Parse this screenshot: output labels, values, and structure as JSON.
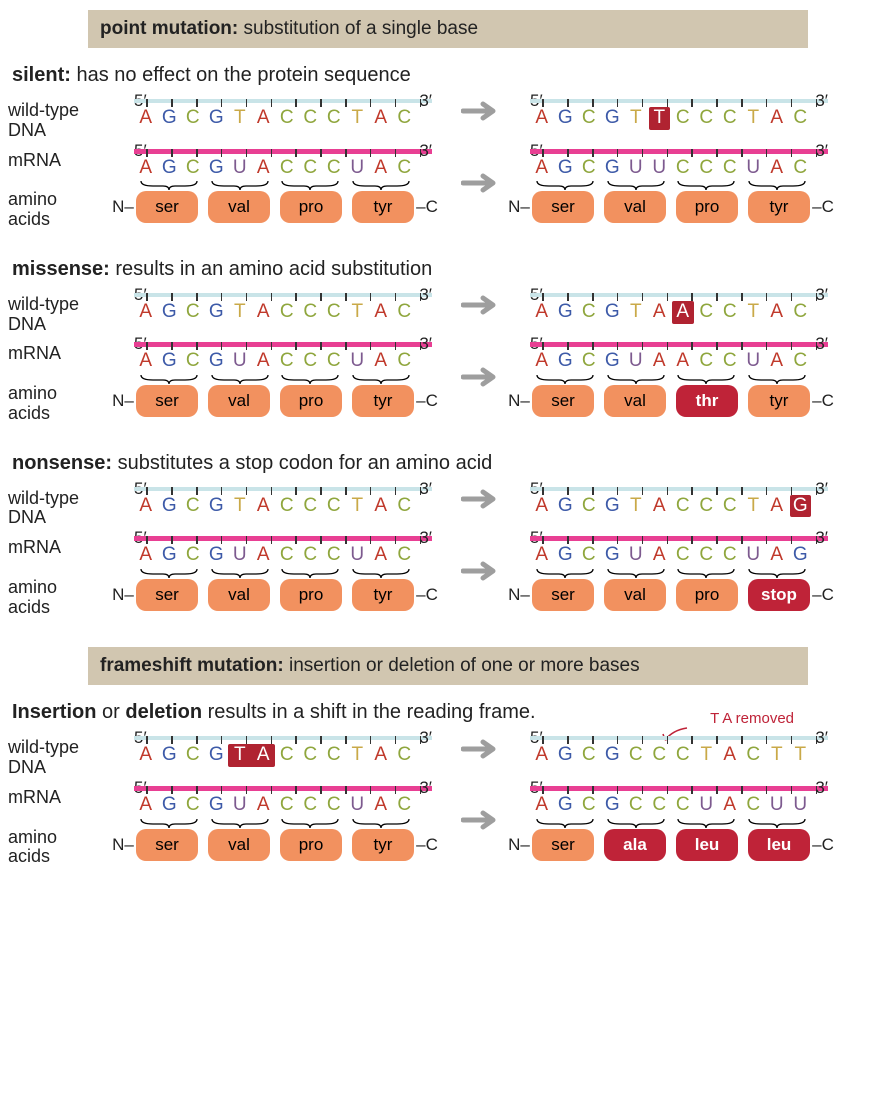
{
  "colors": {
    "dna_bar": "#c9e4e8",
    "rna_bar": "#e83f93",
    "aa_normal_bg": "#f2915f",
    "aa_changed_bg": "#bf2338",
    "highlight_bg": "#b02331",
    "header_bg": "#d1c6b0",
    "arrow": "#9e9e9e",
    "base_A": "#c0392b",
    "base_G": "#3d5aa8",
    "base_C": "#8fa63d",
    "base_T": "#c9a948",
    "base_U": "#7d5a8f"
  },
  "labels": {
    "wild_type_dna": "wild-type\nDNA",
    "mrna": "mRNA",
    "amino_acids": "amino\nacids",
    "end5": "5′",
    "end3": "3′",
    "termN": "N–",
    "termC": "–C"
  },
  "header1": {
    "bold": "point mutation:",
    "rest": " substitution of a single base"
  },
  "header2": {
    "bold": "frameshift mutation:",
    "rest": " insertion or deletion of one or more bases"
  },
  "sections": [
    {
      "key": "silent",
      "title_bold": "silent:",
      "title_rest": " has no effect on the protein sequence",
      "left": {
        "dna": [
          "A",
          "G",
          "C",
          "G",
          "T",
          "A",
          "C",
          "C",
          "C",
          "T",
          "A",
          "C"
        ],
        "dna_hl": [],
        "rna": [
          "A",
          "G",
          "C",
          "G",
          "U",
          "A",
          "C",
          "C",
          "C",
          "U",
          "A",
          "C"
        ],
        "aas": [
          {
            "t": "ser",
            "c": "normal"
          },
          {
            "t": "val",
            "c": "normal"
          },
          {
            "t": "pro",
            "c": "normal"
          },
          {
            "t": "tyr",
            "c": "normal"
          }
        ]
      },
      "right": {
        "dna": [
          "A",
          "G",
          "C",
          "G",
          "T",
          "T",
          "C",
          "C",
          "C",
          "T",
          "A",
          "C"
        ],
        "dna_hl": [
          5
        ],
        "rna": [
          "A",
          "G",
          "C",
          "G",
          "U",
          "U",
          "C",
          "C",
          "C",
          "U",
          "A",
          "C"
        ],
        "aas": [
          {
            "t": "ser",
            "c": "normal"
          },
          {
            "t": "val",
            "c": "normal"
          },
          {
            "t": "pro",
            "c": "normal"
          },
          {
            "t": "tyr",
            "c": "normal"
          }
        ]
      }
    },
    {
      "key": "missense",
      "title_bold": "missense:",
      "title_rest": " results in an amino acid substitution",
      "left": {
        "dna": [
          "A",
          "G",
          "C",
          "G",
          "T",
          "A",
          "C",
          "C",
          "C",
          "T",
          "A",
          "C"
        ],
        "dna_hl": [],
        "rna": [
          "A",
          "G",
          "C",
          "G",
          "U",
          "A",
          "C",
          "C",
          "C",
          "U",
          "A",
          "C"
        ],
        "aas": [
          {
            "t": "ser",
            "c": "normal"
          },
          {
            "t": "val",
            "c": "normal"
          },
          {
            "t": "pro",
            "c": "normal"
          },
          {
            "t": "tyr",
            "c": "normal"
          }
        ]
      },
      "right": {
        "dna": [
          "A",
          "G",
          "C",
          "G",
          "T",
          "A",
          "A",
          "C",
          "C",
          "T",
          "A",
          "C"
        ],
        "dna_hl": [
          6
        ],
        "rna": [
          "A",
          "G",
          "C",
          "G",
          "U",
          "A",
          "A",
          "C",
          "C",
          "U",
          "A",
          "C"
        ],
        "aas": [
          {
            "t": "ser",
            "c": "normal"
          },
          {
            "t": "val",
            "c": "normal"
          },
          {
            "t": "thr",
            "c": "changed"
          },
          {
            "t": "tyr",
            "c": "normal"
          }
        ]
      }
    },
    {
      "key": "nonsense",
      "title_bold": "nonsense:",
      "title_rest": " substitutes a stop codon for an amino acid",
      "left": {
        "dna": [
          "A",
          "G",
          "C",
          "G",
          "T",
          "A",
          "C",
          "C",
          "C",
          "T",
          "A",
          "C"
        ],
        "dna_hl": [],
        "rna": [
          "A",
          "G",
          "C",
          "G",
          "U",
          "A",
          "C",
          "C",
          "C",
          "U",
          "A",
          "C"
        ],
        "aas": [
          {
            "t": "ser",
            "c": "normal"
          },
          {
            "t": "val",
            "c": "normal"
          },
          {
            "t": "pro",
            "c": "normal"
          },
          {
            "t": "tyr",
            "c": "normal"
          }
        ]
      },
      "right": {
        "dna": [
          "A",
          "G",
          "C",
          "G",
          "T",
          "A",
          "C",
          "C",
          "C",
          "T",
          "A",
          "G"
        ],
        "dna_hl": [
          11
        ],
        "rna": [
          "A",
          "G",
          "C",
          "G",
          "U",
          "A",
          "C",
          "C",
          "C",
          "U",
          "A",
          "G"
        ],
        "aas": [
          {
            "t": "ser",
            "c": "normal"
          },
          {
            "t": "val",
            "c": "normal"
          },
          {
            "t": "pro",
            "c": "normal"
          },
          {
            "t": "stop",
            "c": "changed"
          }
        ]
      }
    }
  ],
  "frameshift": {
    "title_html": "Insertion|b| or |/b|deletion|b| results in a shift in the reading frame.",
    "title_parts": [
      "Insertion",
      " or ",
      "deletion",
      " results in a shift in the reading frame."
    ],
    "note": "T A removed",
    "left": {
      "dna": [
        "A",
        "G",
        "C",
        "G",
        "T",
        "A",
        "C",
        "C",
        "C",
        "T",
        "A",
        "C"
      ],
      "dna_hl_group": [
        4,
        5
      ],
      "rna": [
        "A",
        "G",
        "C",
        "G",
        "U",
        "A",
        "C",
        "C",
        "C",
        "U",
        "A",
        "C"
      ],
      "aas": [
        {
          "t": "ser",
          "c": "normal"
        },
        {
          "t": "val",
          "c": "normal"
        },
        {
          "t": "pro",
          "c": "normal"
        },
        {
          "t": "tyr",
          "c": "normal"
        }
      ]
    },
    "right": {
      "dna": [
        "A",
        "G",
        "C",
        "G",
        "C",
        "C",
        "C",
        "T",
        "A",
        "C",
        "T",
        "T"
      ],
      "dna_hl": [],
      "rna": [
        "A",
        "G",
        "C",
        "G",
        "C",
        "C",
        "C",
        "U",
        "A",
        "C",
        "U",
        "U"
      ],
      "aas": [
        {
          "t": "ser",
          "c": "normal"
        },
        {
          "t": "ala",
          "c": "changed"
        },
        {
          "t": "leu",
          "c": "changed"
        },
        {
          "t": "leu",
          "c": "changed"
        }
      ]
    }
  }
}
